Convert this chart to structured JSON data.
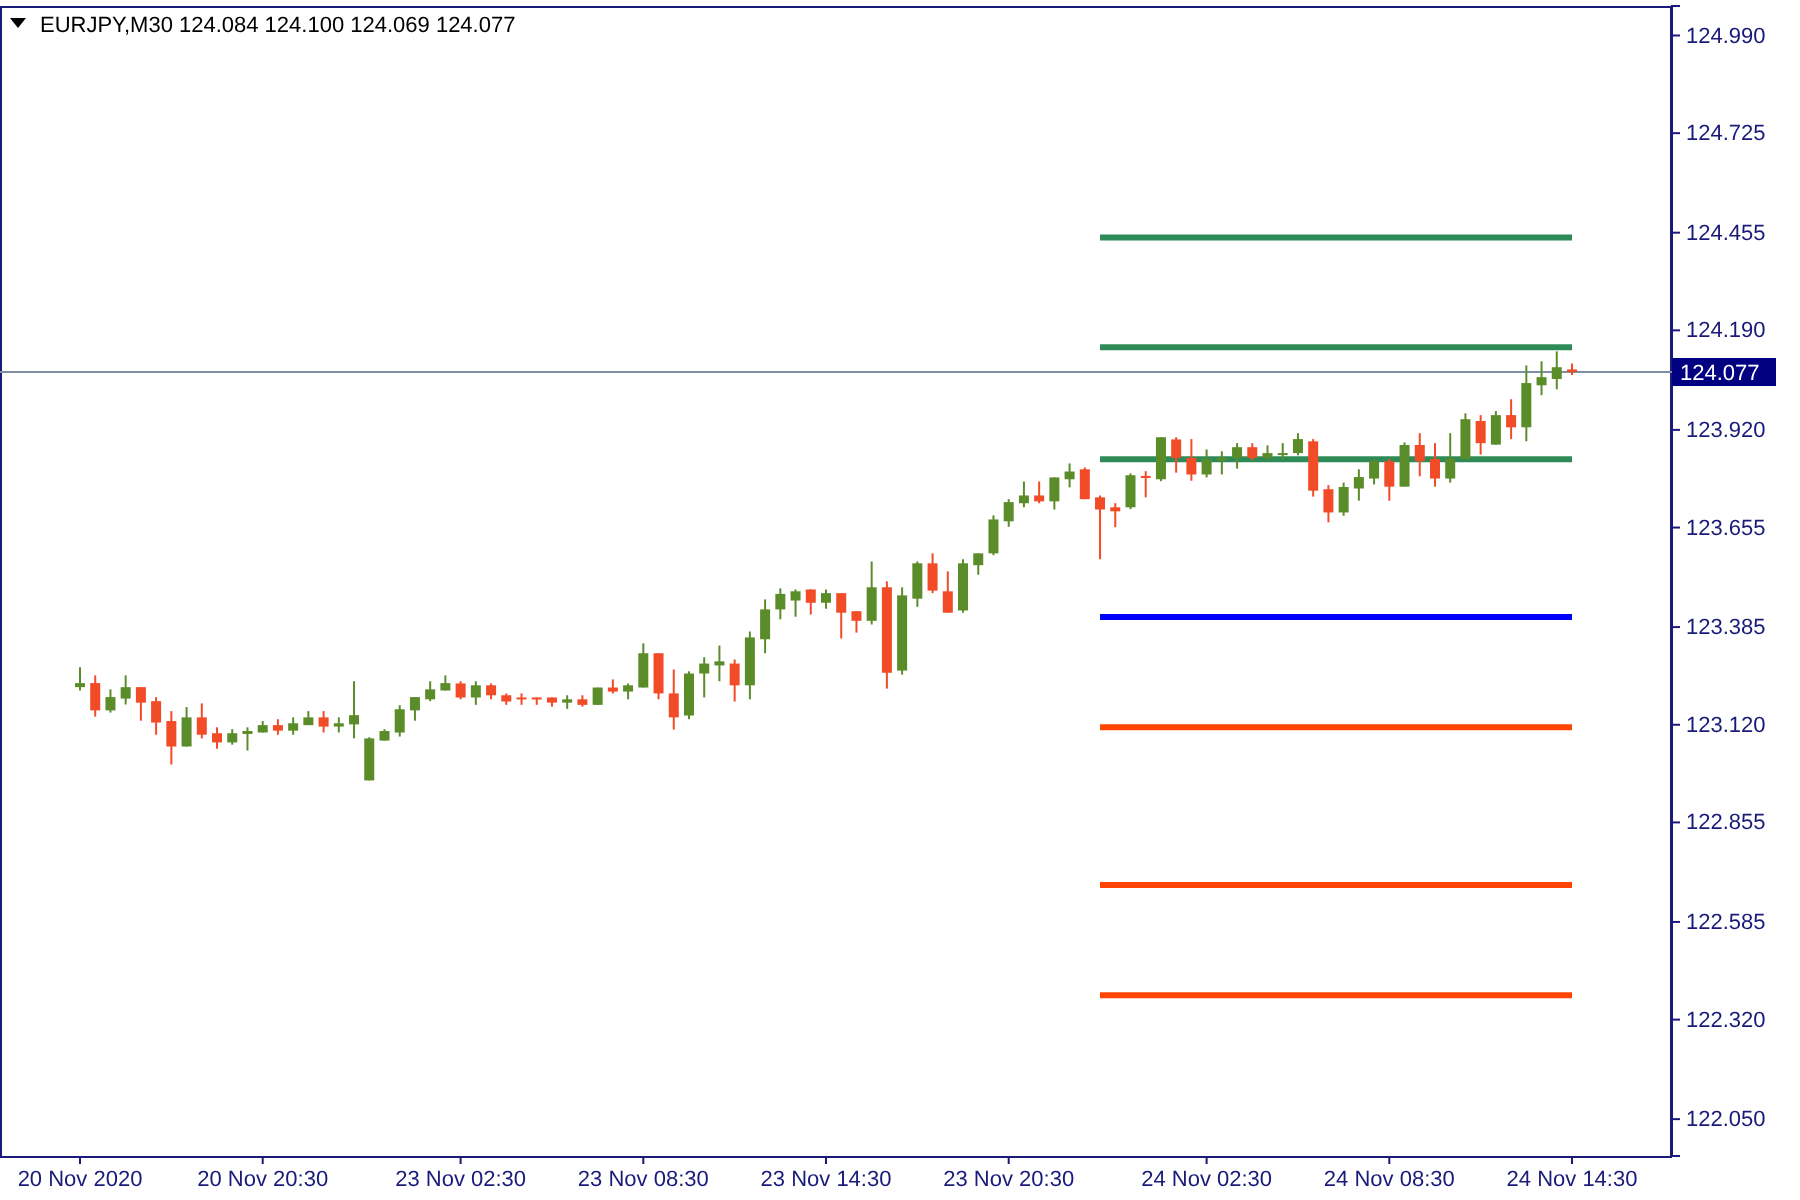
{
  "chart_data": {
    "type": "candlestick",
    "title": "EURJPY,M30 124.084 124.100 124.069 124.077",
    "categories": [
      "20 Nov 2020",
      null,
      null,
      null,
      null,
      null,
      null,
      null,
      null,
      null,
      null,
      null,
      "20 Nov 20:30",
      null,
      null,
      null,
      null,
      null,
      null,
      null,
      null,
      null,
      null,
      null,
      null,
      "23 Nov 02:30",
      null,
      null,
      null,
      null,
      null,
      null,
      null,
      null,
      null,
      null,
      null,
      "23 Nov 08:30",
      null,
      null,
      null,
      null,
      null,
      null,
      null,
      null,
      null,
      null,
      null,
      "23 Nov 14:30",
      null,
      null,
      null,
      null,
      null,
      null,
      null,
      null,
      null,
      null,
      null,
      "23 Nov 20:30",
      null,
      null,
      null,
      null,
      null,
      null,
      null,
      null,
      null,
      null,
      null,
      null,
      "24 Nov 02:30",
      null,
      null,
      null,
      null,
      null,
      null,
      null,
      null,
      null,
      null,
      null,
      "24 Nov 08:30",
      null,
      null,
      null,
      null,
      null,
      null,
      null,
      null,
      null,
      null,
      null,
      "24 Nov 14:30"
    ],
    "ohlc": [
      [
        123.222,
        123.276,
        123.213,
        123.233
      ],
      [
        123.233,
        123.254,
        123.142,
        123.159
      ],
      [
        123.159,
        123.216,
        123.153,
        123.195
      ],
      [
        123.191,
        123.254,
        123.175,
        123.222
      ],
      [
        123.222,
        123.222,
        123.131,
        123.18
      ],
      [
        123.184,
        123.195,
        123.093,
        123.126
      ],
      [
        123.13,
        123.157,
        123.012,
        123.061
      ],
      [
        123.061,
        123.168,
        123.061,
        123.14
      ],
      [
        123.14,
        123.178,
        123.083,
        123.093
      ],
      [
        123.097,
        123.113,
        123.055,
        123.072
      ],
      [
        123.072,
        123.108,
        123.066,
        123.097
      ],
      [
        123.095,
        123.113,
        123.05,
        123.103
      ],
      [
        123.099,
        123.13,
        123.099,
        123.119
      ],
      [
        123.119,
        123.135,
        123.093,
        123.104
      ],
      [
        123.104,
        123.14,
        123.093,
        123.124
      ],
      [
        123.119,
        123.157,
        123.119,
        123.14
      ],
      [
        123.14,
        123.157,
        123.099,
        123.115
      ],
      [
        123.115,
        123.14,
        123.099,
        123.124
      ],
      [
        123.121,
        123.238,
        123.083,
        123.146
      ],
      [
        122.969,
        123.086,
        122.969,
        123.083
      ],
      [
        123.077,
        123.108,
        123.077,
        123.103
      ],
      [
        123.099,
        123.173,
        123.088,
        123.162
      ],
      [
        123.159,
        123.195,
        123.131,
        123.195
      ],
      [
        123.189,
        123.238,
        123.184,
        123.216
      ],
      [
        123.213,
        123.254,
        123.213,
        123.233
      ],
      [
        123.232,
        123.238,
        123.189,
        123.194
      ],
      [
        123.194,
        123.238,
        123.174,
        123.227
      ],
      [
        123.227,
        123.232,
        123.189,
        123.2
      ],
      [
        123.2,
        123.205,
        123.174,
        123.183
      ],
      [
        123.194,
        123.205,
        123.174,
        123.189
      ],
      [
        123.194,
        123.194,
        123.174,
        123.192
      ],
      [
        123.194,
        123.194,
        123.169,
        123.18
      ],
      [
        123.18,
        123.2,
        123.163,
        123.189
      ],
      [
        123.189,
        123.2,
        123.169,
        123.174
      ],
      [
        123.174,
        123.221,
        123.174,
        123.221
      ],
      [
        123.221,
        123.243,
        123.205,
        123.21
      ],
      [
        123.21,
        123.232,
        123.189,
        123.227
      ],
      [
        123.221,
        123.341,
        123.221,
        123.314
      ],
      [
        123.314,
        123.314,
        123.189,
        123.205
      ],
      [
        123.205,
        123.27,
        123.107,
        123.14
      ],
      [
        123.145,
        123.265,
        123.135,
        123.259
      ],
      [
        123.259,
        123.303,
        123.194,
        123.286
      ],
      [
        123.281,
        123.335,
        123.238,
        123.292
      ],
      [
        123.286,
        123.297,
        123.183,
        123.227
      ],
      [
        123.227,
        123.373,
        123.189,
        123.357
      ],
      [
        123.352,
        123.46,
        123.314,
        123.433
      ],
      [
        123.433,
        123.49,
        123.406,
        123.475
      ],
      [
        123.457,
        123.487,
        123.413,
        123.482
      ],
      [
        123.487,
        123.487,
        123.419,
        123.451
      ],
      [
        123.451,
        123.487,
        123.435,
        123.477
      ],
      [
        123.477,
        123.477,
        123.354,
        123.424
      ],
      [
        123.428,
        123.428,
        123.37,
        123.402
      ],
      [
        123.402,
        123.563,
        123.392,
        123.493
      ],
      [
        123.493,
        123.509,
        123.218,
        123.261
      ],
      [
        123.267,
        123.493,
        123.256,
        123.471
      ],
      [
        123.462,
        123.563,
        123.44,
        123.558
      ],
      [
        123.558,
        123.585,
        123.477,
        123.484
      ],
      [
        123.482,
        123.536,
        123.424,
        123.424
      ],
      [
        123.43,
        123.569,
        123.424,
        123.558
      ],
      [
        123.553,
        123.585,
        123.527,
        123.585
      ],
      [
        123.585,
        123.688,
        123.58,
        123.677
      ],
      [
        123.672,
        123.732,
        123.657,
        123.724
      ],
      [
        123.721,
        123.78,
        123.71,
        123.742
      ],
      [
        123.742,
        123.78,
        123.721,
        123.726
      ],
      [
        123.726,
        123.791,
        123.704,
        123.791
      ],
      [
        123.786,
        123.829,
        123.764,
        123.807
      ],
      [
        123.813,
        123.818,
        123.732,
        123.732
      ],
      [
        123.737,
        123.742,
        123.569,
        123.704
      ],
      [
        123.71,
        123.721,
        123.656,
        123.699
      ],
      [
        123.71,
        123.802,
        123.705,
        123.797
      ],
      [
        123.795,
        123.808,
        123.737,
        123.79
      ],
      [
        123.786,
        123.9,
        123.781,
        123.9
      ],
      [
        123.894,
        123.9,
        123.804,
        123.844
      ],
      [
        123.844,
        123.895,
        123.782,
        123.799
      ],
      [
        123.799,
        123.867,
        123.791,
        123.84
      ],
      [
        123.837,
        123.862,
        123.799,
        123.844
      ],
      [
        123.844,
        123.884,
        123.815,
        123.873
      ],
      [
        123.873,
        123.884,
        123.837,
        123.844
      ],
      [
        123.844,
        123.878,
        123.837,
        123.857
      ],
      [
        123.853,
        123.884,
        123.84,
        123.857
      ],
      [
        123.857,
        123.911,
        123.851,
        123.895
      ],
      [
        123.889,
        123.895,
        123.739,
        123.755
      ],
      [
        123.759,
        123.77,
        123.669,
        123.696
      ],
      [
        123.696,
        123.777,
        123.687,
        123.765
      ],
      [
        123.761,
        123.813,
        123.728,
        123.792
      ],
      [
        123.788,
        123.841,
        123.772,
        123.835
      ],
      [
        123.835,
        123.841,
        123.728,
        123.766
      ],
      [
        123.766,
        123.886,
        123.766,
        123.879
      ],
      [
        123.879,
        123.911,
        123.794,
        123.835
      ],
      [
        123.841,
        123.884,
        123.766,
        123.788
      ],
      [
        123.788,
        123.911,
        123.777,
        123.841
      ],
      [
        123.841,
        123.965,
        123.841,
        123.949
      ],
      [
        123.944,
        123.96,
        123.853,
        123.884
      ],
      [
        123.88,
        123.971,
        123.88,
        123.96
      ],
      [
        123.96,
        124.003,
        123.895,
        123.927
      ],
      [
        123.927,
        124.095,
        123.889,
        124.047
      ],
      [
        124.041,
        124.106,
        124.014,
        124.063
      ],
      [
        124.058,
        124.133,
        124.03,
        124.09
      ],
      [
        124.084,
        124.1,
        124.069,
        124.077
      ]
    ],
    "colors": [
      "#5b8c2a",
      "#f24b27",
      "#5b8c2a",
      "#5b8c2a",
      "#f24b27",
      "#f24b27",
      "#f24b27",
      "#5b8c2a",
      "#f24b27",
      "#f24b27",
      "#5b8c2a",
      "#5b8c2a",
      "#5b8c2a",
      "#f24b27",
      "#5b8c2a",
      "#5b8c2a",
      "#f24b27",
      "#5b8c2a",
      "#5b8c2a",
      "#5b8c2a",
      "#5b8c2a",
      "#5b8c2a",
      "#5b8c2a",
      "#5b8c2a",
      "#5b8c2a",
      "#f24b27",
      "#5b8c2a",
      "#f24b27",
      "#f24b27",
      "#f24b27",
      "#f24b27",
      "#f24b27",
      "#5b8c2a",
      "#f24b27",
      "#5b8c2a",
      "#f24b27",
      "#5b8c2a",
      "#5b8c2a",
      "#f24b27",
      "#f24b27",
      "#5b8c2a",
      "#5b8c2a",
      "#5b8c2a",
      "#f24b27",
      "#5b8c2a",
      "#5b8c2a",
      "#5b8c2a",
      "#5b8c2a",
      "#f24b27",
      "#5b8c2a",
      "#f24b27",
      "#f24b27",
      "#5b8c2a",
      "#f24b27",
      "#5b8c2a",
      "#5b8c2a",
      "#f24b27",
      "#f24b27",
      "#5b8c2a",
      "#5b8c2a",
      "#5b8c2a",
      "#5b8c2a",
      "#5b8c2a",
      "#f24b27",
      "#5b8c2a",
      "#5b8c2a",
      "#f24b27",
      "#f24b27",
      "#f24b27",
      "#5b8c2a",
      "#f24b27",
      "#5b8c2a",
      "#f24b27",
      "#f24b27",
      "#5b8c2a",
      "#5b8c2a",
      "#5b8c2a",
      "#f24b27",
      "#5b8c2a",
      "#5b8c2a",
      "#5b8c2a",
      "#f24b27",
      "#f24b27",
      "#5b8c2a",
      "#5b8c2a",
      "#5b8c2a",
      "#f24b27",
      "#5b8c2a",
      "#f24b27",
      "#f24b27",
      "#5b8c2a",
      "#5b8c2a",
      "#f24b27",
      "#5b8c2a",
      "#f24b27",
      "#5b8c2a",
      "#5b8c2a",
      "#5b8c2a",
      "#f24b27"
    ],
    "series": [
      {
        "type": "line",
        "color": "#2e8b57",
        "values": [
          null,
          null,
          null,
          null,
          null,
          null,
          null,
          null,
          null,
          null,
          null,
          null,
          null,
          null,
          null,
          null,
          null,
          null,
          null,
          null,
          null,
          null,
          null,
          null,
          null,
          null,
          null,
          null,
          null,
          null,
          null,
          null,
          null,
          null,
          null,
          null,
          null,
          null,
          null,
          null,
          null,
          null,
          null,
          null,
          null,
          null,
          null,
          null,
          null,
          null,
          null,
          null,
          null,
          null,
          null,
          null,
          null,
          null,
          null,
          null,
          null,
          null,
          null,
          null,
          null,
          null,
          null,
          124.442,
          124.442,
          124.442,
          124.442,
          124.442,
          124.442,
          124.442,
          124.442,
          124.442,
          124.442,
          124.442,
          124.442,
          124.442,
          124.442,
          124.442,
          124.442,
          124.442,
          124.442,
          124.442,
          124.442,
          124.442,
          124.442,
          124.442,
          124.442,
          124.442,
          124.442,
          124.442,
          124.442,
          124.442,
          124.442,
          124.442,
          124.442
        ]
      },
      {
        "type": "line",
        "color": "#2e8b57",
        "values": [
          null,
          null,
          null,
          null,
          null,
          null,
          null,
          null,
          null,
          null,
          null,
          null,
          null,
          null,
          null,
          null,
          null,
          null,
          null,
          null,
          null,
          null,
          null,
          null,
          null,
          null,
          null,
          null,
          null,
          null,
          null,
          null,
          null,
          null,
          null,
          null,
          null,
          null,
          null,
          null,
          null,
          null,
          null,
          null,
          null,
          null,
          null,
          null,
          null,
          null,
          null,
          null,
          null,
          null,
          null,
          null,
          null,
          null,
          null,
          null,
          null,
          null,
          null,
          null,
          null,
          null,
          null,
          124.144,
          124.144,
          124.144,
          124.144,
          124.144,
          124.144,
          124.144,
          124.144,
          124.144,
          124.144,
          124.144,
          124.144,
          124.144,
          124.144,
          124.144,
          124.144,
          124.144,
          124.144,
          124.144,
          124.144,
          124.144,
          124.144,
          124.144,
          124.144,
          124.144,
          124.144,
          124.144,
          124.144,
          124.144,
          124.144,
          124.144,
          124.144
        ]
      },
      {
        "type": "line",
        "color": "#2e8b57",
        "values": [
          null,
          null,
          null,
          null,
          null,
          null,
          null,
          null,
          null,
          null,
          null,
          null,
          null,
          null,
          null,
          null,
          null,
          null,
          null,
          null,
          null,
          null,
          null,
          null,
          null,
          null,
          null,
          null,
          null,
          null,
          null,
          null,
          null,
          null,
          null,
          null,
          null,
          null,
          null,
          null,
          null,
          null,
          null,
          null,
          null,
          null,
          null,
          null,
          null,
          null,
          null,
          null,
          null,
          null,
          null,
          null,
          null,
          null,
          null,
          null,
          null,
          null,
          null,
          null,
          null,
          null,
          null,
          123.84,
          123.84,
          123.84,
          123.84,
          123.84,
          123.84,
          123.84,
          123.84,
          123.84,
          123.84,
          123.84,
          123.84,
          123.84,
          123.84,
          123.84,
          123.84,
          123.84,
          123.84,
          123.84,
          123.84,
          123.84,
          123.84,
          123.84,
          123.84,
          123.84,
          123.84,
          123.84,
          123.84,
          123.84,
          123.84,
          123.84,
          123.84
        ]
      },
      {
        "type": "line",
        "color": "#0000ff",
        "values": [
          null,
          null,
          null,
          null,
          null,
          null,
          null,
          null,
          null,
          null,
          null,
          null,
          null,
          null,
          null,
          null,
          null,
          null,
          null,
          null,
          null,
          null,
          null,
          null,
          null,
          null,
          null,
          null,
          null,
          null,
          null,
          null,
          null,
          null,
          null,
          null,
          null,
          null,
          null,
          null,
          null,
          null,
          null,
          null,
          null,
          null,
          null,
          null,
          null,
          null,
          null,
          null,
          null,
          null,
          null,
          null,
          null,
          null,
          null,
          null,
          null,
          null,
          null,
          null,
          null,
          null,
          null,
          123.412,
          123.412,
          123.412,
          123.412,
          123.412,
          123.412,
          123.412,
          123.412,
          123.412,
          123.412,
          123.412,
          123.412,
          123.412,
          123.412,
          123.412,
          123.412,
          123.412,
          123.412,
          123.412,
          123.412,
          123.412,
          123.412,
          123.412,
          123.412,
          123.412,
          123.412,
          123.412,
          123.412,
          123.412,
          123.412,
          123.412,
          123.412
        ]
      },
      {
        "type": "line",
        "color": "#ff4500",
        "values": [
          null,
          null,
          null,
          null,
          null,
          null,
          null,
          null,
          null,
          null,
          null,
          null,
          null,
          null,
          null,
          null,
          null,
          null,
          null,
          null,
          null,
          null,
          null,
          null,
          null,
          null,
          null,
          null,
          null,
          null,
          null,
          null,
          null,
          null,
          null,
          null,
          null,
          null,
          null,
          null,
          null,
          null,
          null,
          null,
          null,
          null,
          null,
          null,
          null,
          null,
          null,
          null,
          null,
          null,
          null,
          null,
          null,
          null,
          null,
          null,
          null,
          null,
          null,
          null,
          null,
          null,
          null,
          123.113,
          123.113,
          123.113,
          123.113,
          123.113,
          123.113,
          123.113,
          123.113,
          123.113,
          123.113,
          123.113,
          123.113,
          123.113,
          123.113,
          123.113,
          123.113,
          123.113,
          123.113,
          123.113,
          123.113,
          123.113,
          123.113,
          123.113,
          123.113,
          123.113,
          123.113,
          123.113,
          123.113,
          123.113,
          123.113,
          123.113,
          123.113
        ]
      },
      {
        "type": "line",
        "color": "#ff4500",
        "values": [
          null,
          null,
          null,
          null,
          null,
          null,
          null,
          null,
          null,
          null,
          null,
          null,
          null,
          null,
          null,
          null,
          null,
          null,
          null,
          null,
          null,
          null,
          null,
          null,
          null,
          null,
          null,
          null,
          null,
          null,
          null,
          null,
          null,
          null,
          null,
          null,
          null,
          null,
          null,
          null,
          null,
          null,
          null,
          null,
          null,
          null,
          null,
          null,
          null,
          null,
          null,
          null,
          null,
          null,
          null,
          null,
          null,
          null,
          null,
          null,
          null,
          null,
          null,
          null,
          null,
          null,
          null,
          122.685,
          122.685,
          122.685,
          122.685,
          122.685,
          122.685,
          122.685,
          122.685,
          122.685,
          122.685,
          122.685,
          122.685,
          122.685,
          122.685,
          122.685,
          122.685,
          122.685,
          122.685,
          122.685,
          122.685,
          122.685,
          122.685,
          122.685,
          122.685,
          122.685,
          122.685,
          122.685,
          122.685,
          122.685,
          122.685,
          122.685,
          122.685
        ]
      },
      {
        "type": "line",
        "color": "#ff4500",
        "values": [
          null,
          null,
          null,
          null,
          null,
          null,
          null,
          null,
          null,
          null,
          null,
          null,
          null,
          null,
          null,
          null,
          null,
          null,
          null,
          null,
          null,
          null,
          null,
          null,
          null,
          null,
          null,
          null,
          null,
          null,
          null,
          null,
          null,
          null,
          null,
          null,
          null,
          null,
          null,
          null,
          null,
          null,
          null,
          null,
          null,
          null,
          null,
          null,
          null,
          null,
          null,
          null,
          null,
          null,
          null,
          null,
          null,
          null,
          null,
          null,
          null,
          null,
          null,
          null,
          null,
          null,
          null,
          122.386,
          122.386,
          122.386,
          122.386,
          122.386,
          122.386,
          122.386,
          122.386,
          122.386,
          122.386,
          122.386,
          122.386,
          122.386,
          122.386,
          122.386,
          122.386,
          122.386,
          122.386,
          122.386,
          122.386,
          122.386,
          122.386,
          122.386,
          122.386,
          122.386,
          122.386,
          122.386,
          122.386,
          122.386,
          122.386,
          122.386,
          122.386
        ]
      }
    ],
    "ylim": [
      121.95,
      125.07
    ],
    "yticks": [
      {
        "value": 124.99,
        "label": "124.990"
      },
      {
        "value": 124.725,
        "label": "124.725"
      },
      {
        "value": 124.455,
        "label": "124.455"
      },
      {
        "value": 124.19,
        "label": "124.190"
      },
      {
        "value": 123.92,
        "label": "123.920"
      },
      {
        "value": 123.655,
        "label": "123.655"
      },
      {
        "value": 123.385,
        "label": "123.385"
      },
      {
        "value": 123.12,
        "label": "123.120"
      },
      {
        "value": 122.855,
        "label": "122.855"
      },
      {
        "value": 122.585,
        "label": "122.585"
      },
      {
        "value": 122.32,
        "label": "122.320"
      },
      {
        "value": 122.05,
        "label": "122.050"
      }
    ],
    "ref_lines": [
      {
        "axis": "y",
        "value": 124.077,
        "label": "124.077",
        "color": "#7f8fa6"
      }
    ]
  }
}
